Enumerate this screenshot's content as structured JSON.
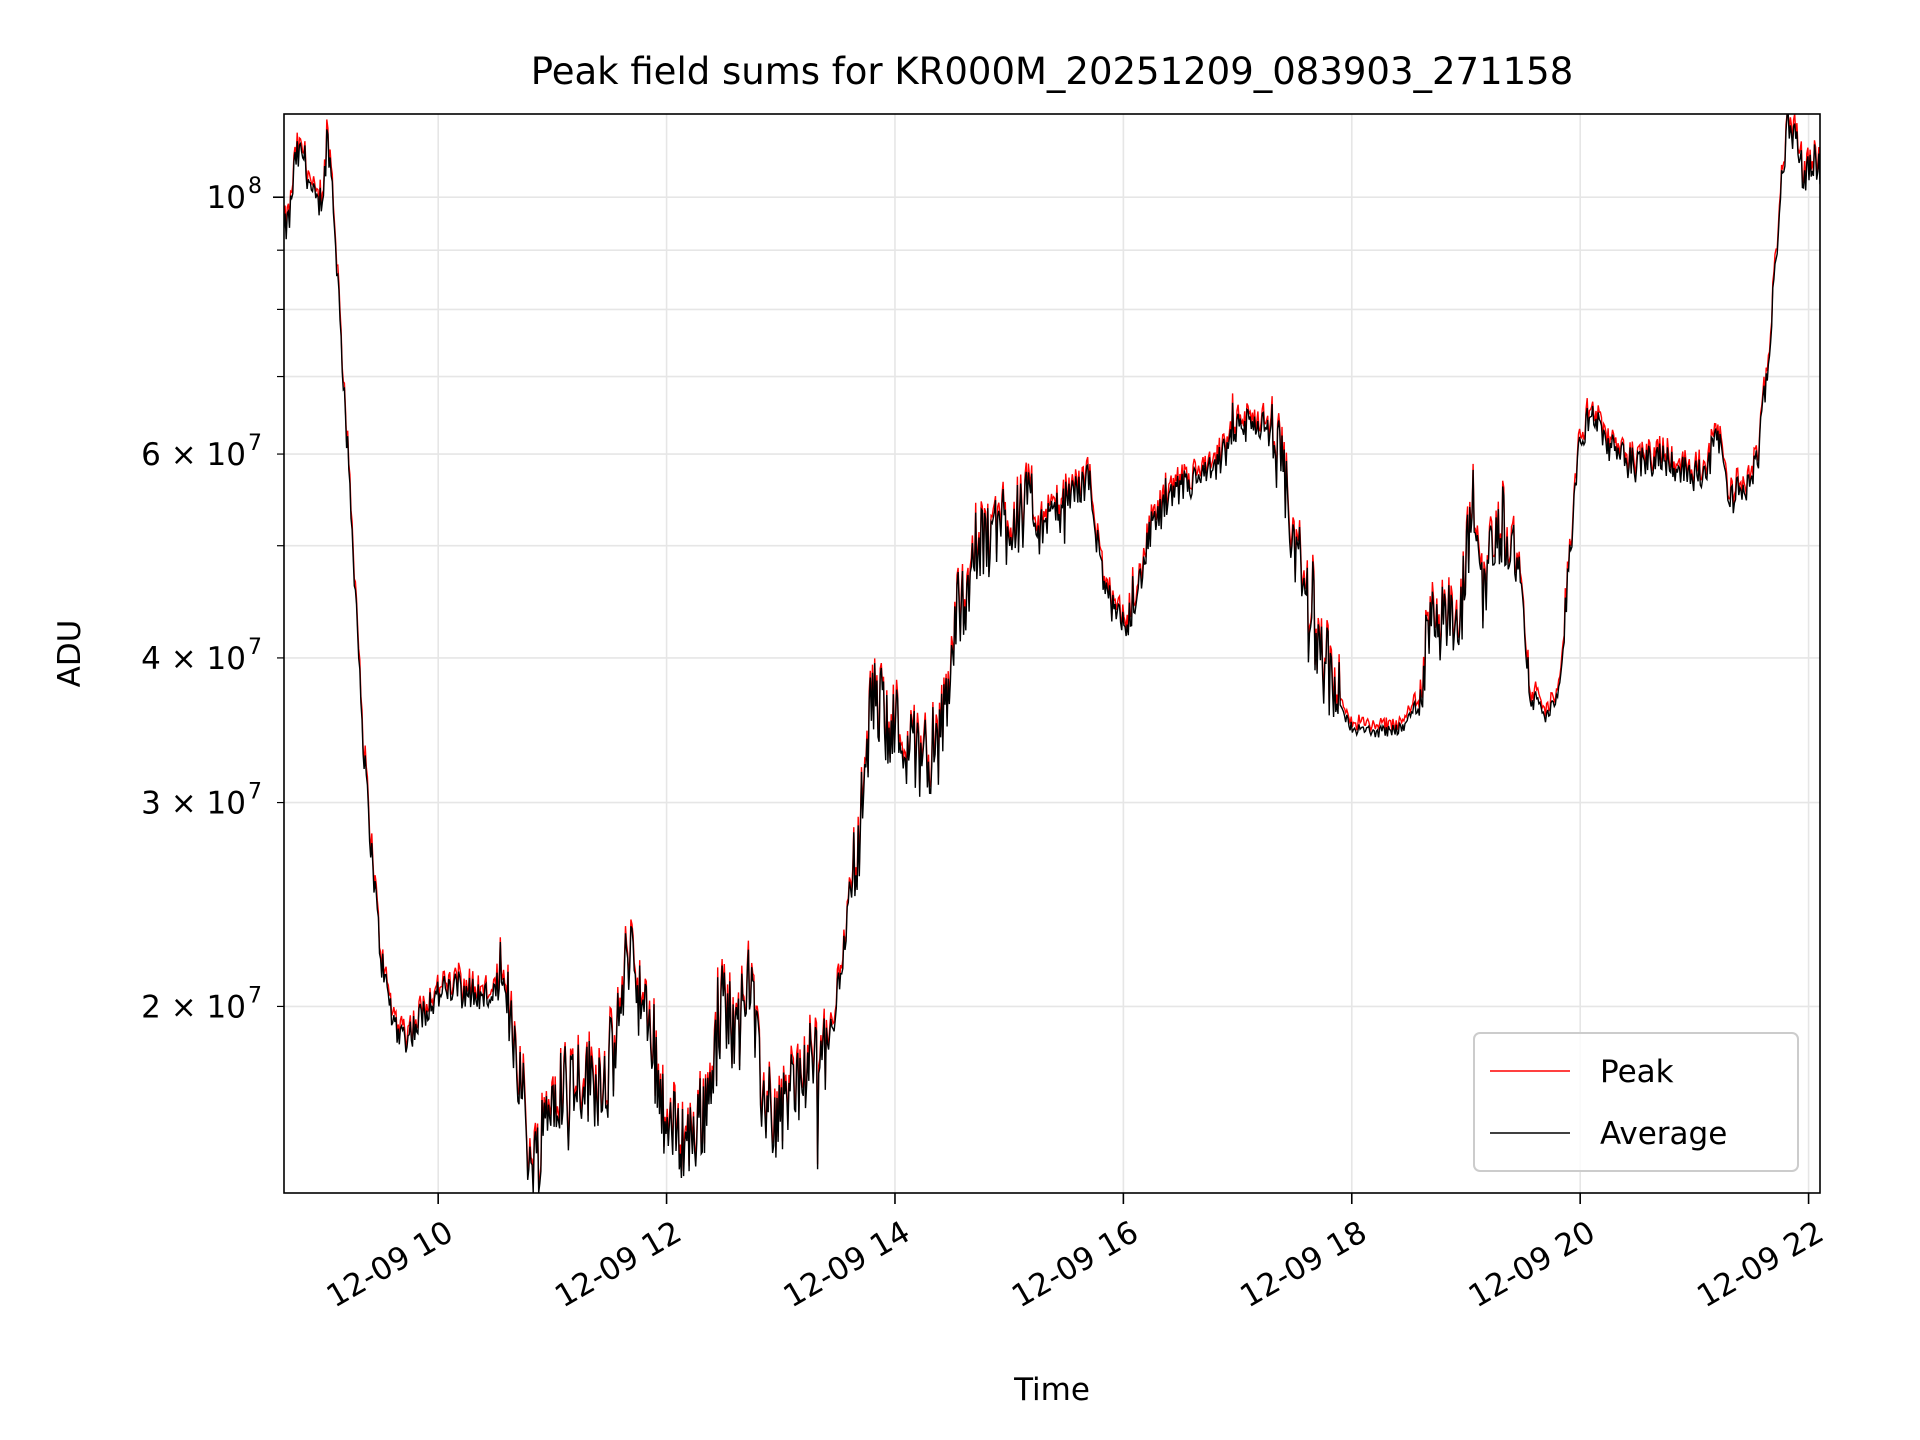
{
  "chart_data": {
    "type": "line",
    "title": "Peak field sums for KR000M_20251209_083903_271158",
    "xlabel": "Time",
    "ylabel": "ADU",
    "yscale": "log",
    "xlim_hours": [
      8.65,
      22.1
    ],
    "ylim": [
      13800000,
      118000000
    ],
    "x_ticks": [
      {
        "hour": 10,
        "label": "12-09 10"
      },
      {
        "hour": 12,
        "label": "12-09 12"
      },
      {
        "hour": 14,
        "label": "12-09 14"
      },
      {
        "hour": 16,
        "label": "12-09 16"
      },
      {
        "hour": 18,
        "label": "12-09 18"
      },
      {
        "hour": 20,
        "label": "12-09 20"
      },
      {
        "hour": 22,
        "label": "12-09 22"
      }
    ],
    "y_major_ticks": [
      {
        "value": 100000000,
        "base": "10",
        "exp": "8"
      }
    ],
    "y_minor_ticks": [
      {
        "value": 20000000,
        "base": "2 × 10",
        "exp": "7"
      },
      {
        "value": 30000000,
        "base": "3 × 10",
        "exp": "7"
      },
      {
        "value": 40000000,
        "base": "4 × 10",
        "exp": "7"
      },
      {
        "value": 60000000,
        "base": "6 × 10",
        "exp": "7"
      }
    ],
    "y_unlabeled_minor": [
      50000000,
      70000000,
      80000000,
      90000000
    ],
    "grid": true,
    "legend_position": "lower-right",
    "series": [
      {
        "name": "Peak",
        "color": "#ff0000"
      },
      {
        "name": "Average",
        "color": "#000000"
      }
    ],
    "key_points": [
      {
        "h": 8.65,
        "v": 93000000
      },
      {
        "h": 8.7,
        "v": 96000000
      },
      {
        "h": 8.75,
        "v": 108000000
      },
      {
        "h": 8.82,
        "v": 109000000
      },
      {
        "h": 8.9,
        "v": 100000000
      },
      {
        "h": 8.95,
        "v": 98000000
      },
      {
        "h": 9.0,
        "v": 102000000
      },
      {
        "h": 9.03,
        "v": 114000000
      },
      {
        "h": 9.08,
        "v": 100000000
      },
      {
        "h": 9.12,
        "v": 85000000
      },
      {
        "h": 9.2,
        "v": 62000000
      },
      {
        "h": 9.28,
        "v": 45000000
      },
      {
        "h": 9.35,
        "v": 33000000
      },
      {
        "h": 9.42,
        "v": 27000000
      },
      {
        "h": 9.5,
        "v": 22000000
      },
      {
        "h": 9.6,
        "v": 19500000
      },
      {
        "h": 9.7,
        "v": 18800000
      },
      {
        "h": 9.8,
        "v": 19200000
      },
      {
        "h": 9.9,
        "v": 20000000
      },
      {
        "h": 10.0,
        "v": 20500000
      },
      {
        "h": 10.2,
        "v": 20800000
      },
      {
        "h": 10.4,
        "v": 20300000
      },
      {
        "h": 10.55,
        "v": 20800000
      },
      {
        "h": 10.65,
        "v": 19500000
      },
      {
        "h": 10.75,
        "v": 16500000
      },
      {
        "h": 10.82,
        "v": 14200000
      },
      {
        "h": 10.9,
        "v": 15500000
      },
      {
        "h": 11.0,
        "v": 17000000
      },
      {
        "h": 11.2,
        "v": 17500000
      },
      {
        "h": 11.4,
        "v": 17200000
      },
      {
        "h": 11.55,
        "v": 18300000
      },
      {
        "h": 11.68,
        "v": 23000000
      },
      {
        "h": 11.78,
        "v": 20000000
      },
      {
        "h": 11.9,
        "v": 18000000
      },
      {
        "h": 12.0,
        "v": 15800000
      },
      {
        "h": 12.2,
        "v": 15300000
      },
      {
        "h": 12.35,
        "v": 16500000
      },
      {
        "h": 12.5,
        "v": 20500000
      },
      {
        "h": 12.62,
        "v": 18500000
      },
      {
        "h": 12.72,
        "v": 22000000
      },
      {
        "h": 12.82,
        "v": 17000000
      },
      {
        "h": 12.95,
        "v": 16000000
      },
      {
        "h": 13.1,
        "v": 17000000
      },
      {
        "h": 13.3,
        "v": 18000000
      },
      {
        "h": 13.45,
        "v": 19000000
      },
      {
        "h": 13.55,
        "v": 22500000
      },
      {
        "h": 13.7,
        "v": 29000000
      },
      {
        "h": 13.8,
        "v": 37000000
      },
      {
        "h": 14.0,
        "v": 35000000
      },
      {
        "h": 14.2,
        "v": 33000000
      },
      {
        "h": 14.4,
        "v": 34000000
      },
      {
        "h": 14.55,
        "v": 44000000
      },
      {
        "h": 14.7,
        "v": 49000000
      },
      {
        "h": 14.9,
        "v": 52000000
      },
      {
        "h": 15.1,
        "v": 54000000
      },
      {
        "h": 15.3,
        "v": 52000000
      },
      {
        "h": 15.5,
        "v": 55000000
      },
      {
        "h": 15.7,
        "v": 57000000
      },
      {
        "h": 15.8,
        "v": 48000000
      },
      {
        "h": 15.9,
        "v": 44000000
      },
      {
        "h": 16.0,
        "v": 42500000
      },
      {
        "h": 16.1,
        "v": 44500000
      },
      {
        "h": 16.25,
        "v": 52000000
      },
      {
        "h": 16.5,
        "v": 56000000
      },
      {
        "h": 16.8,
        "v": 58000000
      },
      {
        "h": 17.0,
        "v": 63000000
      },
      {
        "h": 17.2,
        "v": 64000000
      },
      {
        "h": 17.35,
        "v": 60000000
      },
      {
        "h": 17.5,
        "v": 50000000
      },
      {
        "h": 17.7,
        "v": 42000000
      },
      {
        "h": 17.85,
        "v": 37000000
      },
      {
        "h": 18.0,
        "v": 34800000
      },
      {
        "h": 18.2,
        "v": 34500000
      },
      {
        "h": 18.45,
        "v": 34800000
      },
      {
        "h": 18.6,
        "v": 37000000
      },
      {
        "h": 18.7,
        "v": 45000000
      },
      {
        "h": 18.8,
        "v": 43000000
      },
      {
        "h": 18.95,
        "v": 42000000
      },
      {
        "h": 19.05,
        "v": 55000000
      },
      {
        "h": 19.15,
        "v": 46000000
      },
      {
        "h": 19.3,
        "v": 53000000
      },
      {
        "h": 19.45,
        "v": 49000000
      },
      {
        "h": 19.55,
        "v": 38000000
      },
      {
        "h": 19.7,
        "v": 35500000
      },
      {
        "h": 19.82,
        "v": 37500000
      },
      {
        "h": 19.9,
        "v": 48000000
      },
      {
        "h": 20.0,
        "v": 62000000
      },
      {
        "h": 20.1,
        "v": 65000000
      },
      {
        "h": 20.3,
        "v": 60000000
      },
      {
        "h": 20.5,
        "v": 58500000
      },
      {
        "h": 20.7,
        "v": 60000000
      },
      {
        "h": 20.9,
        "v": 58000000
      },
      {
        "h": 21.1,
        "v": 57500000
      },
      {
        "h": 21.2,
        "v": 63000000
      },
      {
        "h": 21.3,
        "v": 55000000
      },
      {
        "h": 21.45,
        "v": 56000000
      },
      {
        "h": 21.55,
        "v": 59000000
      },
      {
        "h": 21.65,
        "v": 72000000
      },
      {
        "h": 21.75,
        "v": 100000000
      },
      {
        "h": 21.82,
        "v": 116000000
      },
      {
        "h": 21.9,
        "v": 112000000
      },
      {
        "h": 21.95,
        "v": 104000000
      },
      {
        "h": 22.05,
        "v": 108000000
      },
      {
        "h": 22.1,
        "v": 106000000
      }
    ],
    "noise_note": "high-frequency jitter added around key points"
  }
}
